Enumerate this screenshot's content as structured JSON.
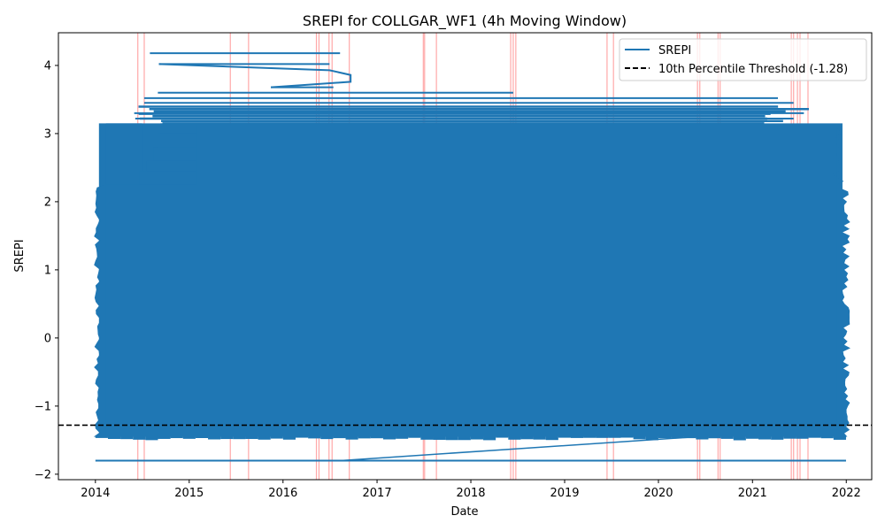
{
  "chart_data": {
    "type": "line",
    "title": "SREPI for COLLGAR_WF1 (4h Moving Window)",
    "xlabel": "Date",
    "ylabel": "SREPI",
    "xlim": [
      "2013-08-10",
      "2022-04-10"
    ],
    "ylim": [
      -2.08,
      4.48
    ],
    "x_ticks": [
      "2014",
      "2015",
      "2016",
      "2017",
      "2018",
      "2019",
      "2020",
      "2021",
      "2022"
    ],
    "y_ticks": [
      "-2",
      "-1",
      "0",
      "1",
      "2",
      "3",
      "4"
    ],
    "y_tick_values": [
      -2,
      -1,
      0,
      1,
      2,
      3,
      4
    ],
    "grid": false,
    "legend": {
      "placement": "top-right",
      "entries": [
        {
          "label": "SREPI",
          "color": "#1f77b4",
          "style": "solid"
        },
        {
          "label": "10th Percentile Threshold (-1.28)",
          "color": "#000000",
          "style": "dashed"
        }
      ]
    },
    "series": [
      {
        "name": "SREPI",
        "color": "#1f77b4",
        "note_dense_band": {
          "x_start": "2014-01-01",
          "x_end": "2021-12-31",
          "y_low": -1.45,
          "y_high": 3.15
        },
        "spikes": [
          {
            "x_left": "2014-08-01",
            "x_right": "2016-08-10",
            "y": 4.18
          },
          {
            "x_left": "2014-09-05",
            "x_right": "2016-06-30",
            "y": 4.02
          },
          {
            "x_left": "2015-11-15",
            "x_right": "2016-07-15",
            "y": 3.68
          },
          {
            "x_left": "2014-09-01",
            "x_right": "2018-06-15",
            "y": 3.6
          },
          {
            "x_left": "2014-07-10",
            "x_right": "2021-04-10",
            "y": 3.52
          },
          {
            "x_left": "2014-07-10",
            "x_right": "2021-06-10",
            "y": 3.45
          },
          {
            "x_left": "2014-06-01",
            "x_right": "2021-07-20",
            "y": 3.3
          },
          {
            "x_left": "2014-06-05",
            "x_right": "2021-06-10",
            "y": 3.22
          }
        ],
        "baseline": {
          "x_start": "2014-01-01",
          "x_end": "2021-12-31",
          "y": -1.8
        }
      }
    ],
    "threshold": {
      "name": "10th Percentile Threshold (-1.28)",
      "y": -1.28,
      "color": "#000000",
      "style": "dashed"
    },
    "anomaly_markers": {
      "color": "#ff9999",
      "dates": [
        "2014-06-15",
        "2014-07-10",
        "2015-06-10",
        "2015-08-20",
        "2016-05-10",
        "2016-05-20",
        "2016-06-28",
        "2016-07-10",
        "2016-09-15",
        "2017-06-30",
        "2017-07-05",
        "2017-08-20",
        "2018-06-05",
        "2018-06-15",
        "2018-06-25",
        "2019-06-15",
        "2019-07-10",
        "2020-06-01",
        "2020-06-10",
        "2020-08-20",
        "2020-08-28",
        "2021-06-01",
        "2021-06-10",
        "2021-06-25",
        "2021-07-05",
        "2021-08-05"
      ]
    }
  }
}
